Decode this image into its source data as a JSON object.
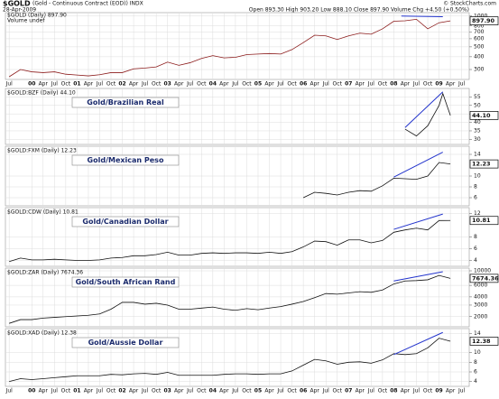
{
  "chart_data": [
    {
      "type": "line",
      "log": true,
      "grid": true,
      "color": "#8b1a1a",
      "title": "$GOLD",
      "subtitle": "(Gold - Continuous Contract (EOD)) INDX",
      "date": "28-Apr-2009",
      "quote": "Open 893.30  High 903.20  Low 888.10  Close 897.90  Volume   Chg +4.50 (+0.50%)",
      "credit": "© StockCharts.com",
      "legend_label": "$GOLD (Daily) 897.90",
      "volume_label": "Volume undef",
      "xlim": [
        "1999-06",
        "2009-09"
      ],
      "ylim": [
        240,
        1080
      ],
      "yticks": [
        300,
        400,
        500,
        600,
        700,
        800,
        1000
      ],
      "xticks": [
        {
          "value": "1999-07",
          "label": "Jul"
        },
        {
          "value": "2000-01",
          "label": "00"
        },
        {
          "value": "2000-04",
          "label": "Apr"
        },
        {
          "value": "2000-07",
          "label": "Jul"
        },
        {
          "value": "2000-10",
          "label": "Oct"
        },
        {
          "value": "2001-01",
          "label": "01"
        },
        {
          "value": "2001-04",
          "label": "Apr"
        },
        {
          "value": "2001-07",
          "label": "Jul"
        },
        {
          "value": "2001-10",
          "label": "Oct"
        },
        {
          "value": "2002-01",
          "label": "02"
        },
        {
          "value": "2002-04",
          "label": "Apr"
        },
        {
          "value": "2002-07",
          "label": "Jul"
        },
        {
          "value": "2002-10",
          "label": "Oct"
        },
        {
          "value": "2003-01",
          "label": "03"
        },
        {
          "value": "2003-04",
          "label": "Apr"
        },
        {
          "value": "2003-07",
          "label": "Jul"
        },
        {
          "value": "2003-10",
          "label": "Oct"
        },
        {
          "value": "2004-01",
          "label": "04"
        },
        {
          "value": "2004-04",
          "label": "Apr"
        },
        {
          "value": "2004-07",
          "label": "Jul"
        },
        {
          "value": "2004-10",
          "label": "Oct"
        },
        {
          "value": "2005-01",
          "label": "05"
        },
        {
          "value": "2005-04",
          "label": "Apr"
        },
        {
          "value": "2005-07",
          "label": "Jul"
        },
        {
          "value": "2005-10",
          "label": "Oct"
        },
        {
          "value": "2006-01",
          "label": "06"
        },
        {
          "value": "2006-04",
          "label": "Apr"
        },
        {
          "value": "2006-07",
          "label": "Jul"
        },
        {
          "value": "2006-10",
          "label": "Oct"
        },
        {
          "value": "2007-01",
          "label": "07"
        },
        {
          "value": "2007-04",
          "label": "Apr"
        },
        {
          "value": "2007-07",
          "label": "Jul"
        },
        {
          "value": "2007-10",
          "label": "Oct"
        },
        {
          "value": "2008-01",
          "label": "08"
        },
        {
          "value": "2008-04",
          "label": "Apr"
        },
        {
          "value": "2008-07",
          "label": "Jul"
        },
        {
          "value": "2008-10",
          "label": "Oct"
        },
        {
          "value": "2009-01",
          "label": "09"
        },
        {
          "value": "2009-04",
          "label": "Apr"
        },
        {
          "value": "2009-07",
          "label": "Jul"
        }
      ],
      "x": [
        "1999-07",
        "1999-10",
        "2000-01",
        "2000-04",
        "2000-07",
        "2000-10",
        "2001-01",
        "2001-04",
        "2001-07",
        "2001-10",
        "2002-01",
        "2002-04",
        "2002-07",
        "2002-10",
        "2003-01",
        "2003-04",
        "2003-07",
        "2003-10",
        "2004-01",
        "2004-04",
        "2004-07",
        "2004-10",
        "2005-01",
        "2005-04",
        "2005-07",
        "2005-10",
        "2006-01",
        "2006-04",
        "2006-07",
        "2006-10",
        "2007-01",
        "2007-04",
        "2007-07",
        "2007-10",
        "2008-01",
        "2008-04",
        "2008-07",
        "2008-10",
        "2009-01",
        "2009-04"
      ],
      "values": [
        255,
        300,
        285,
        280,
        285,
        270,
        265,
        260,
        267,
        280,
        280,
        305,
        310,
        318,
        355,
        330,
        350,
        385,
        410,
        390,
        395,
        420,
        425,
        430,
        425,
        470,
        550,
        650,
        640,
        590,
        640,
        680,
        665,
        750,
        890,
        900,
        930,
        750,
        860,
        897.9
      ],
      "value_labels": [
        null,
        null,
        null,
        null,
        null,
        null,
        null,
        null,
        null,
        null,
        null,
        null,
        null,
        null,
        null,
        null,
        null,
        null,
        null,
        null,
        null,
        null,
        null,
        null,
        null,
        null,
        null,
        null,
        null,
        null,
        null,
        null,
        null,
        null,
        null,
        null,
        null,
        null,
        null,
        "897.90"
      ],
      "trendline": {
        "color": "#2233cc",
        "x": [
          "2008-03",
          "2009-02"
        ],
        "values": [
          1000,
          985
        ]
      }
    },
    {
      "type": "line",
      "log": false,
      "grid": true,
      "color": "#111111",
      "title": "$GOLD:BZF (Daily) 44.10",
      "annotation": "Gold/Brazilian Real",
      "xlim": [
        "1999-06",
        "2009-09"
      ],
      "ylim": [
        27,
        60
      ],
      "yticks": [
        30,
        35,
        40,
        45,
        50,
        55
      ],
      "x": [
        "2008-04",
        "2008-07",
        "2008-10",
        "2009-01",
        "2009-02",
        "2009-04"
      ],
      "values": [
        36,
        32,
        38,
        50,
        57,
        44.1
      ],
      "value_labels": [
        null,
        null,
        null,
        null,
        null,
        "44.10"
      ],
      "trendline": {
        "color": "#2233cc",
        "x": [
          "2008-04",
          "2009-02"
        ],
        "values": [
          37,
          58
        ]
      }
    },
    {
      "type": "line",
      "log": false,
      "grid": true,
      "color": "#111111",
      "title": "$GOLD:FXM (Daily) 12.23",
      "annotation": "Gold/Mexican Peso",
      "xlim": [
        "1999-06",
        "2009-09"
      ],
      "ylim": [
        4.5,
        15.5
      ],
      "yticks": [
        6,
        8,
        10,
        14
      ],
      "x": [
        "2006-01",
        "2006-04",
        "2006-07",
        "2006-10",
        "2007-01",
        "2007-04",
        "2007-07",
        "2007-10",
        "2008-01",
        "2008-04",
        "2008-07",
        "2008-10",
        "2009-01",
        "2009-04"
      ],
      "values": [
        6.0,
        7.0,
        6.8,
        6.5,
        7.0,
        7.3,
        7.2,
        8.2,
        9.6,
        9.5,
        9.4,
        10.0,
        12.5,
        12.23
      ],
      "value_labels": [
        null,
        null,
        null,
        null,
        null,
        null,
        null,
        null,
        null,
        null,
        null,
        null,
        null,
        "12.23"
      ],
      "trendline": {
        "color": "#2233cc",
        "x": [
          "2008-01",
          "2009-02"
        ],
        "values": [
          9.8,
          14.4
        ]
      }
    },
    {
      "type": "line",
      "log": false,
      "grid": true,
      "color": "#111111",
      "title": "$GOLD:CDW (Daily) 10.81",
      "annotation": "Gold/Canadian Dollar",
      "xlim": [
        "1999-06",
        "2009-09"
      ],
      "ylim": [
        3,
        13
      ],
      "yticks": [
        4,
        6,
        8,
        12
      ],
      "x": [
        "1999-07",
        "1999-10",
        "2000-01",
        "2000-04",
        "2000-07",
        "2000-10",
        "2001-01",
        "2001-04",
        "2001-07",
        "2001-10",
        "2002-01",
        "2002-04",
        "2002-07",
        "2002-10",
        "2003-01",
        "2003-04",
        "2003-07",
        "2003-10",
        "2004-01",
        "2004-04",
        "2004-07",
        "2004-10",
        "2005-01",
        "2005-04",
        "2005-07",
        "2005-10",
        "2006-01",
        "2006-04",
        "2006-07",
        "2006-10",
        "2007-01",
        "2007-04",
        "2007-07",
        "2007-10",
        "2008-01",
        "2008-04",
        "2008-07",
        "2008-10",
        "2009-01",
        "2009-04"
      ],
      "values": [
        3.8,
        4.4,
        4.1,
        4.1,
        4.2,
        4.1,
        4.0,
        4.0,
        4.1,
        4.4,
        4.5,
        4.8,
        4.8,
        5.0,
        5.4,
        4.9,
        4.9,
        5.2,
        5.3,
        5.2,
        5.3,
        5.3,
        5.2,
        5.4,
        5.2,
        5.5,
        6.3,
        7.3,
        7.2,
        6.6,
        7.5,
        7.5,
        7.0,
        7.4,
        8.8,
        9.2,
        9.5,
        9.2,
        10.8,
        10.81
      ],
      "value_labels": [
        null,
        null,
        null,
        null,
        null,
        null,
        null,
        null,
        null,
        null,
        null,
        null,
        null,
        null,
        null,
        null,
        null,
        null,
        null,
        null,
        null,
        null,
        null,
        null,
        null,
        null,
        null,
        null,
        null,
        null,
        null,
        null,
        null,
        null,
        null,
        null,
        null,
        null,
        null,
        "10.81"
      ],
      "trendline": {
        "color": "#2233cc",
        "x": [
          "2008-01",
          "2009-02"
        ],
        "values": [
          9.3,
          11.9
        ]
      }
    },
    {
      "type": "line",
      "log": true,
      "grid": true,
      "color": "#111111",
      "title": "$GOLD:ZAR (Daily) 7674.36",
      "annotation": "Gold/South African Rand",
      "xlim": [
        "1999-06",
        "2009-09"
      ],
      "ylim": [
        1400,
        11000
      ],
      "yticks": [
        2000,
        3000,
        4000,
        6000,
        10000
      ],
      "x": [
        "1999-07",
        "1999-10",
        "2000-01",
        "2000-04",
        "2000-07",
        "2000-10",
        "2001-01",
        "2001-04",
        "2001-07",
        "2001-10",
        "2002-01",
        "2002-04",
        "2002-07",
        "2002-10",
        "2003-01",
        "2003-04",
        "2003-07",
        "2003-10",
        "2004-01",
        "2004-04",
        "2004-07",
        "2004-10",
        "2005-01",
        "2005-04",
        "2005-07",
        "2005-10",
        "2006-01",
        "2006-04",
        "2006-07",
        "2006-10",
        "2007-01",
        "2007-04",
        "2007-07",
        "2007-10",
        "2008-01",
        "2008-04",
        "2008-07",
        "2008-10",
        "2009-01",
        "2009-04"
      ],
      "values": [
        1580,
        1800,
        1800,
        1900,
        1950,
        2000,
        2050,
        2100,
        2200,
        2600,
        3300,
        3300,
        3100,
        3200,
        3000,
        2600,
        2600,
        2700,
        2800,
        2600,
        2500,
        2650,
        2550,
        2700,
        2850,
        3100,
        3400,
        3900,
        4500,
        4400,
        4600,
        4800,
        4700,
        5100,
        6300,
        7000,
        7100,
        7300,
        8500,
        7674.36
      ],
      "value_labels": [
        null,
        null,
        null,
        null,
        null,
        null,
        null,
        null,
        null,
        null,
        null,
        null,
        null,
        null,
        null,
        null,
        null,
        null,
        null,
        null,
        null,
        null,
        null,
        null,
        null,
        null,
        null,
        null,
        null,
        null,
        null,
        null,
        null,
        null,
        null,
        null,
        null,
        null,
        null,
        "7674.36"
      ],
      "trendline": {
        "color": "#2233cc",
        "x": [
          "2008-01",
          "2009-02"
        ],
        "values": [
          7000,
          9700
        ]
      }
    },
    {
      "type": "line",
      "log": false,
      "grid": true,
      "color": "#111111",
      "title": "$GOLD:XAD (Daily) 12.38",
      "annotation": "Gold/Aussie Dollar",
      "xlim": [
        "1999-06",
        "2009-09"
      ],
      "ylim": [
        3,
        15
      ],
      "yticks": [
        4,
        6,
        8,
        10,
        14
      ],
      "xticks": [
        {
          "value": "1999-07",
          "label": "Jul"
        },
        {
          "value": "2000-01",
          "label": "00"
        },
        {
          "value": "2000-04",
          "label": "Apr"
        },
        {
          "value": "2000-07",
          "label": "Jul"
        },
        {
          "value": "2000-10",
          "label": "Oct"
        },
        {
          "value": "2001-01",
          "label": "01"
        },
        {
          "value": "2001-04",
          "label": "Apr"
        },
        {
          "value": "2001-07",
          "label": "Jul"
        },
        {
          "value": "2001-10",
          "label": "Oct"
        },
        {
          "value": "2002-01",
          "label": "02"
        },
        {
          "value": "2002-04",
          "label": "Apr"
        },
        {
          "value": "2002-07",
          "label": "Jul"
        },
        {
          "value": "2002-10",
          "label": "Oct"
        },
        {
          "value": "2003-01",
          "label": "03"
        },
        {
          "value": "2003-04",
          "label": "Apr"
        },
        {
          "value": "2003-07",
          "label": "Jul"
        },
        {
          "value": "2003-10",
          "label": "Oct"
        },
        {
          "value": "2004-01",
          "label": "04"
        },
        {
          "value": "2004-04",
          "label": "Apr"
        },
        {
          "value": "2004-07",
          "label": "Jul"
        },
        {
          "value": "2004-10",
          "label": "Oct"
        },
        {
          "value": "2005-01",
          "label": "05"
        },
        {
          "value": "2005-04",
          "label": "Apr"
        },
        {
          "value": "2005-07",
          "label": "Jul"
        },
        {
          "value": "2005-10",
          "label": "Oct"
        },
        {
          "value": "2006-01",
          "label": "06"
        },
        {
          "value": "2006-04",
          "label": "Apr"
        },
        {
          "value": "2006-07",
          "label": "Jul"
        },
        {
          "value": "2006-10",
          "label": "Oct"
        },
        {
          "value": "2007-01",
          "label": "07"
        },
        {
          "value": "2007-04",
          "label": "Apr"
        },
        {
          "value": "2007-07",
          "label": "Jul"
        },
        {
          "value": "2007-10",
          "label": "Oct"
        },
        {
          "value": "2008-01",
          "label": "08"
        },
        {
          "value": "2008-04",
          "label": "Apr"
        },
        {
          "value": "2008-07",
          "label": "Jul"
        },
        {
          "value": "2008-10",
          "label": "Oct"
        },
        {
          "value": "2009-01",
          "label": "09"
        },
        {
          "value": "2009-04",
          "label": "Apr"
        },
        {
          "value": "2009-07",
          "label": "Jul"
        }
      ],
      "x": [
        "1999-07",
        "1999-10",
        "2000-01",
        "2000-04",
        "2000-07",
        "2000-10",
        "2001-01",
        "2001-04",
        "2001-07",
        "2001-10",
        "2002-01",
        "2002-04",
        "2002-07",
        "2002-10",
        "2003-01",
        "2003-04",
        "2003-07",
        "2003-10",
        "2004-01",
        "2004-04",
        "2004-07",
        "2004-10",
        "2005-01",
        "2005-04",
        "2005-07",
        "2005-10",
        "2006-01",
        "2006-04",
        "2006-07",
        "2006-10",
        "2007-01",
        "2007-04",
        "2007-07",
        "2007-10",
        "2008-01",
        "2008-04",
        "2008-07",
        "2008-10",
        "2009-01",
        "2009-04"
      ],
      "values": [
        4.0,
        4.6,
        4.4,
        4.6,
        4.8,
        5.0,
        5.2,
        5.2,
        5.2,
        5.5,
        5.4,
        5.6,
        5.7,
        5.5,
        5.9,
        5.3,
        5.3,
        5.3,
        5.3,
        5.5,
        5.6,
        5.6,
        5.5,
        5.6,
        5.6,
        6.2,
        7.4,
        8.6,
        8.3,
        7.6,
        8.0,
        8.1,
        7.8,
        8.5,
        9.8,
        9.6,
        9.8,
        11.0,
        13.0,
        12.38
      ],
      "value_labels": [
        null,
        null,
        null,
        null,
        null,
        null,
        null,
        null,
        null,
        null,
        null,
        null,
        null,
        null,
        null,
        null,
        null,
        null,
        null,
        null,
        null,
        null,
        null,
        null,
        null,
        null,
        null,
        null,
        null,
        null,
        null,
        null,
        null,
        null,
        null,
        null,
        null,
        null,
        null,
        "12.38"
      ],
      "trendline": {
        "color": "#2233cc",
        "x": [
          "2008-01",
          "2009-02"
        ],
        "values": [
          9.6,
          14.2
        ]
      }
    }
  ]
}
